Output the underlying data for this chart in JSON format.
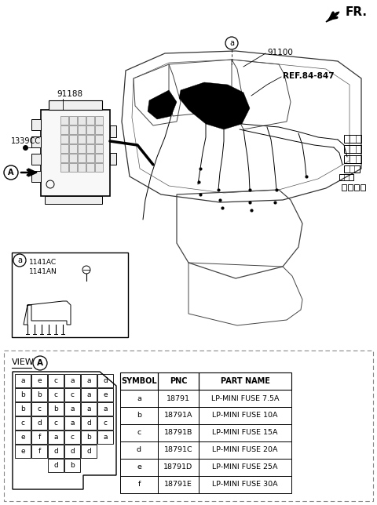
{
  "bg_color": "#ffffff",
  "fr_label": "FR.",
  "part_numbers": {
    "main": "91100",
    "sub1": "91188",
    "sub2": "1339CC",
    "detail1": "1141AC",
    "detail2": "1141AN",
    "ref": "REF.84-847"
  },
  "view_label": "VIEW",
  "table_headers": [
    "SYMBOL",
    "PNC",
    "PART NAME"
  ],
  "table_rows": [
    [
      "a",
      "18791",
      "LP-MINI FUSE 7.5A"
    ],
    [
      "b",
      "18791A",
      "LP-MINI FUSE 10A"
    ],
    [
      "c",
      "18791B",
      "LP-MINI FUSE 15A"
    ],
    [
      "d",
      "18791C",
      "LP-MINI FUSE 20A"
    ],
    [
      "e",
      "18791D",
      "LP-MINI FUSE 25A"
    ],
    [
      "f",
      "18791E",
      "LP-MINI FUSE 30A"
    ]
  ],
  "fuse_grid_rows": [
    [
      "a",
      "e",
      "c",
      "a",
      "a",
      "d"
    ],
    [
      "b",
      "b",
      "c",
      "c",
      "a",
      "e"
    ],
    [
      "b",
      "c",
      "b",
      "a",
      "a",
      "a"
    ],
    [
      "c",
      "d",
      "c",
      "a",
      "d",
      "c"
    ],
    [
      "e",
      "f",
      "a",
      "c",
      "b",
      "a"
    ],
    [
      "e",
      "f",
      "d",
      "d",
      "d",
      ""
    ]
  ],
  "fuse_grid_bottom": [
    "",
    "",
    "d",
    "b",
    "",
    ""
  ]
}
